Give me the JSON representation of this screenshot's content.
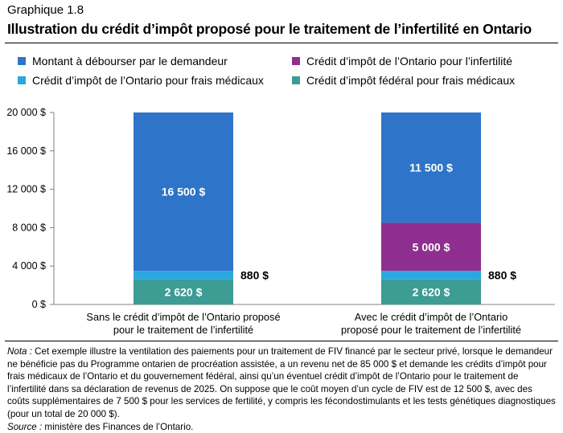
{
  "header": {
    "label": "Graphique 1.8",
    "title": "Illustration du crédit d’impôt proposé pour le traitement de l’infertilité en Ontario"
  },
  "legend": [
    {
      "label": "Montant à débourser par le demandeur",
      "color": "#2e75c9"
    },
    {
      "label": "Crédit d’impôt de l’Ontario pour l’infertilité",
      "color": "#8e2f8f"
    },
    {
      "label": "Crédit d’impôt de l’Ontario pour frais médicaux",
      "color": "#2aa8df"
    },
    {
      "label": "Crédit d’impôt fédéral pour frais médicaux",
      "color": "#3d9c94"
    }
  ],
  "chart_data": {
    "type": "bar",
    "stacked": true,
    "categories": [
      [
        "Sans le crédit d’impôt de l’Ontario proposé",
        "pour le traitement de l’infertilité"
      ],
      [
        "Avec le crédit d’impôt de l’Ontario",
        "proposé pour le traitement de l’infertilité"
      ]
    ],
    "series": [
      {
        "name": "Crédit d’impôt fédéral pour frais médicaux",
        "color": "#3d9c94",
        "values": [
          2620,
          2620
        ],
        "labels": [
          "2 620 $",
          "2 620 $"
        ],
        "label_position": "inside"
      },
      {
        "name": "Crédit d’impôt de l’Ontario pour frais médicaux",
        "color": "#2aa8df",
        "values": [
          880,
          880
        ],
        "labels": [
          "880 $",
          "880 $"
        ],
        "label_position": "outside-right"
      },
      {
        "name": "Crédit d’impôt de l’Ontario pour l’infertilité",
        "color": "#8e2f8f",
        "values": [
          0,
          5000
        ],
        "labels": [
          "",
          "5 000 $"
        ],
        "label_position": "inside"
      },
      {
        "name": "Montant à débourser par le demandeur",
        "color": "#2e75c9",
        "values": [
          16500,
          11500
        ],
        "labels": [
          "16 500 $",
          "11 500 $"
        ],
        "label_position": "inside"
      }
    ],
    "ylim": [
      0,
      20000
    ],
    "yticks": [
      0,
      4000,
      8000,
      12000,
      16000,
      20000
    ],
    "ytick_labels": [
      "0 $",
      "4 000 $",
      "8 000 $",
      "12 000 $",
      "16 000 $",
      "20 000 $"
    ],
    "grid": false
  },
  "note": {
    "nota_label": "Nota :",
    "nota_text": "Cet exemple illustre la ventilation des paiements pour un traitement de FIV financé par le secteur privé, lorsque le demandeur ne bénéficie pas du Programme ontarien de procréation assistée, a un revenu net de 85 000 $ et demande les crédits d’impôt pour frais médicaux de l’Ontario et du gouvernement fédéral, ainsi qu’un éventuel crédit d’impôt de l’Ontario pour le traitement de l’infertilité dans sa déclaration de revenus de 2025. On suppose que le coût moyen d’un cycle de FIV est de 12 500 $, avec des coûts supplémentaires de 7 500 $ pour les services de fertilité, y compris les fécondostimulants et les tests génétiques diagnostiques (pour un total de 20 000 $).",
    "source_label": "Source :",
    "source_text": "ministère des Finances de l’Ontario."
  }
}
